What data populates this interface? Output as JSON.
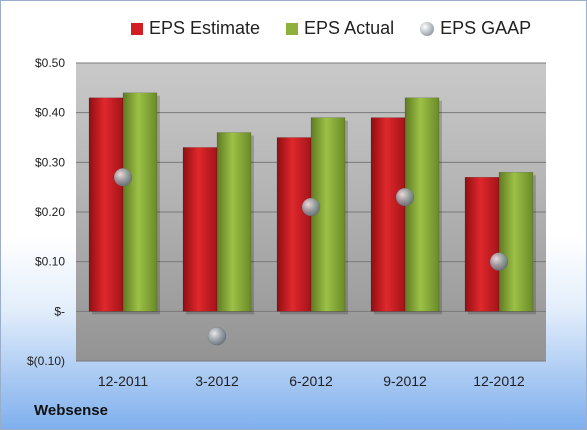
{
  "legend": {
    "estimate": "EPS Estimate",
    "actual": "EPS Actual",
    "gaap": "EPS GAAP"
  },
  "company": "Websense",
  "colors": {
    "estimate": "#d11f24",
    "actual": "#8fb13b",
    "gaap": "#9aa3ad"
  },
  "chart_data": {
    "type": "bar",
    "categories": [
      "12-2011",
      "3-2012",
      "6-2012",
      "9-2012",
      "12-2012"
    ],
    "series": [
      {
        "name": "EPS Estimate",
        "values": [
          0.43,
          0.33,
          0.35,
          0.39,
          0.27
        ]
      },
      {
        "name": "EPS Actual",
        "values": [
          0.44,
          0.36,
          0.39,
          0.43,
          0.28
        ]
      },
      {
        "name": "EPS GAAP",
        "type": "scatter",
        "values": [
          0.27,
          -0.05,
          0.21,
          0.23,
          0.1
        ]
      }
    ],
    "ylim": [
      -0.1,
      0.5
    ],
    "yticks": [
      -0.1,
      0.0,
      0.1,
      0.2,
      0.3,
      0.4,
      0.5
    ],
    "ytick_labels": [
      "$(0.10)",
      "$-",
      "$0.10",
      "$0.20",
      "$0.30",
      "$0.40",
      "$0.50"
    ],
    "grid": true,
    "legend_position": "top"
  }
}
